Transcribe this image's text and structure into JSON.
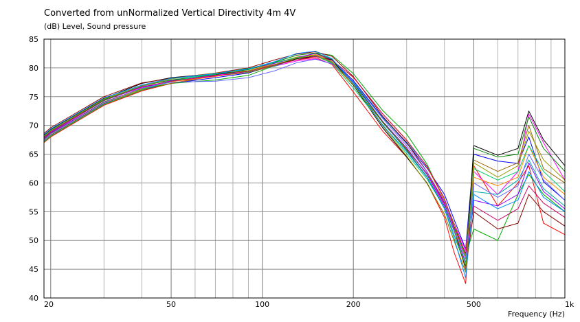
{
  "chart_data": {
    "type": "line",
    "title": "Converted from unNormalized Vertical Directivity 4m 4V",
    "ylabel": "(dB)  Level, Sound pressure",
    "xlabel": "Frequency  (Hz)",
    "xscale": "log",
    "xlim": [
      19,
      1000
    ],
    "ylim": [
      40,
      85
    ],
    "grid": true,
    "x_ticks": [
      {
        "value": 20,
        "label": "20"
      },
      {
        "value": 50,
        "label": "50"
      },
      {
        "value": 100,
        "label": "100"
      },
      {
        "value": 200,
        "label": "200"
      },
      {
        "value": 500,
        "label": "500"
      },
      {
        "value": 1000,
        "label": "1k"
      }
    ],
    "y_ticks": [
      {
        "value": 40,
        "label": "40"
      },
      {
        "value": 45,
        "label": "45"
      },
      {
        "value": 50,
        "label": "50"
      },
      {
        "value": 55,
        "label": "55"
      },
      {
        "value": 60,
        "label": "60"
      },
      {
        "value": 65,
        "label": "65"
      },
      {
        "value": 70,
        "label": "70"
      },
      {
        "value": 75,
        "label": "75"
      },
      {
        "value": 80,
        "label": "80"
      },
      {
        "value": 85,
        "label": "85"
      }
    ],
    "x": [
      19,
      20,
      30,
      40,
      50,
      70,
      90,
      110,
      130,
      150,
      170,
      200,
      250,
      300,
      350,
      400,
      430,
      470,
      500,
      600,
      700,
      760,
      850,
      1000
    ],
    "series": [
      {
        "color": "#ff0000",
        "values": [
          67.0,
          68.0,
          73.5,
          76.0,
          77.3,
          78.7,
          79.5,
          80.5,
          81.4,
          81.8,
          80.6,
          75.8,
          69.0,
          64.5,
          60.0,
          54.0,
          48.0,
          42.5,
          63.0,
          56.0,
          60.0,
          63.0,
          53.0,
          51.0
        ]
      },
      {
        "color": "#0000ff",
        "values": [
          67.3,
          68.3,
          73.8,
          76.2,
          77.3,
          78.3,
          79.1,
          80.5,
          81.7,
          82.3,
          81.4,
          77.8,
          71.4,
          66.9,
          62.6,
          58.0,
          53.7,
          48.5,
          65.0,
          63.8,
          63.4,
          68.0,
          60.2,
          57.0
        ]
      },
      {
        "color": "#00aa00",
        "values": [
          67.6,
          68.6,
          74.1,
          76.4,
          77.3,
          77.9,
          78.7,
          80.4,
          81.6,
          82.6,
          82.2,
          79.0,
          72.6,
          68.5,
          63.3,
          56.9,
          52.2,
          47.3,
          52.0,
          50.0,
          58.0,
          61.5,
          58.0,
          55.0
        ]
      },
      {
        "color": "#ff00ff",
        "values": [
          67.9,
          68.9,
          74.4,
          76.6,
          77.7,
          78.7,
          79.5,
          80.3,
          81.2,
          81.6,
          80.7,
          77.6,
          70.5,
          65.8,
          61.7,
          56.3,
          53.0,
          48.3,
          62.0,
          58.0,
          62.0,
          72.0,
          67.0,
          60.5
        ]
      },
      {
        "color": "#00aaaa",
        "values": [
          68.2,
          69.2,
          74.4,
          76.8,
          78.1,
          78.9,
          79.3,
          80.3,
          81.6,
          82.0,
          81.0,
          77.6,
          71.3,
          67.1,
          63.0,
          57.0,
          52.5,
          47.5,
          58.5,
          58.0,
          60.5,
          64.0,
          59.0,
          56.0
        ]
      },
      {
        "color": "#996600",
        "values": [
          67.1,
          68.1,
          73.6,
          76.1,
          77.3,
          78.6,
          79.2,
          80.4,
          81.6,
          82.1,
          80.9,
          77.0,
          70.5,
          65.9,
          61.6,
          57.0,
          53.0,
          47.5,
          64.0,
          62.0,
          63.5,
          70.0,
          62.5,
          60.0
        ]
      },
      {
        "color": "#ff8800",
        "values": [
          67.4,
          68.4,
          73.9,
          76.3,
          77.6,
          78.5,
          79.5,
          80.8,
          81.9,
          82.3,
          81.4,
          78.3,
          72.0,
          67.5,
          62.8,
          57.0,
          52.0,
          47.0,
          61.0,
          59.5,
          61.0,
          66.5,
          61.0,
          58.0
        ]
      },
      {
        "color": "#8800ff",
        "values": [
          67.7,
          68.7,
          74.0,
          76.5,
          77.8,
          78.8,
          79.8,
          80.8,
          81.8,
          82.5,
          81.4,
          77.5,
          70.7,
          66.1,
          61.5,
          56.0,
          51.7,
          46.2,
          57.0,
          56.0,
          58.0,
          63.5,
          58.5,
          55.5
        ]
      },
      {
        "color": "#008800",
        "values": [
          68.0,
          69.0,
          74.5,
          76.9,
          77.9,
          78.8,
          79.7,
          81.0,
          82.2,
          82.6,
          81.5,
          77.4,
          70.6,
          65.7,
          61.1,
          55.7,
          51.0,
          45.5,
          66.0,
          64.5,
          65.0,
          71.5,
          66.0,
          62.0
        ]
      },
      {
        "color": "#000000",
        "values": [
          68.3,
          69.3,
          74.7,
          77.3,
          78.3,
          79.0,
          79.5,
          80.6,
          81.6,
          82.0,
          81.4,
          77.0,
          69.6,
          64.5,
          60.0,
          54.5,
          50.0,
          44.5,
          66.5,
          64.8,
          66.0,
          72.5,
          67.5,
          63.0
        ]
      },
      {
        "color": "#880000",
        "values": [
          68.6,
          69.6,
          75.0,
          77.4,
          78.2,
          79.1,
          80.0,
          81.4,
          82.4,
          82.8,
          82.0,
          78.5,
          71.6,
          67.0,
          62.0,
          56.5,
          52.0,
          45.0,
          55.0,
          52.0,
          53.0,
          58.0,
          55.0,
          52.5
        ]
      },
      {
        "color": "#00cc66",
        "values": [
          67.2,
          68.2,
          73.7,
          76.2,
          77.7,
          79.0,
          79.9,
          80.9,
          81.8,
          82.1,
          80.8,
          76.5,
          70.1,
          65.1,
          60.7,
          55.7,
          51.0,
          46.0,
          62.5,
          60.5,
          62.0,
          66.5,
          62.0,
          58.5
        ]
      },
      {
        "color": "#6666ff",
        "values": [
          67.5,
          68.5,
          74.0,
          76.5,
          77.5,
          77.7,
          78.3,
          79.5,
          80.9,
          81.5,
          80.7,
          77.5,
          71.2,
          66.5,
          62.0,
          56.8,
          51.8,
          46.8,
          60.0,
          57.5,
          59.5,
          65.0,
          60.5,
          57.0
        ]
      },
      {
        "color": "#cc0066",
        "values": [
          67.8,
          68.8,
          74.3,
          76.7,
          77.7,
          78.6,
          79.4,
          80.5,
          81.4,
          82.0,
          81.3,
          78.4,
          72.0,
          67.4,
          62.9,
          57.3,
          52.5,
          47.8,
          56.0,
          53.5,
          55.5,
          59.5,
          56.5,
          54.0
        ]
      },
      {
        "color": "#999900",
        "values": [
          68.1,
          69.1,
          74.6,
          76.9,
          78.1,
          79.1,
          79.5,
          80.6,
          81.7,
          82.2,
          81.1,
          77.1,
          69.9,
          64.7,
          59.9,
          54.5,
          50.0,
          44.5,
          63.5,
          61.0,
          63.0,
          69.0,
          64.0,
          60.5
        ]
      },
      {
        "color": "#0088ff",
        "values": [
          68.4,
          69.4,
          74.8,
          77.0,
          78.2,
          79.0,
          79.8,
          81.1,
          82.5,
          82.9,
          81.6,
          77.3,
          70.0,
          65.5,
          61.0,
          55.5,
          50.5,
          43.5,
          58.0,
          55.5,
          57.0,
          62.0,
          57.5,
          55.0
        ]
      }
    ]
  }
}
